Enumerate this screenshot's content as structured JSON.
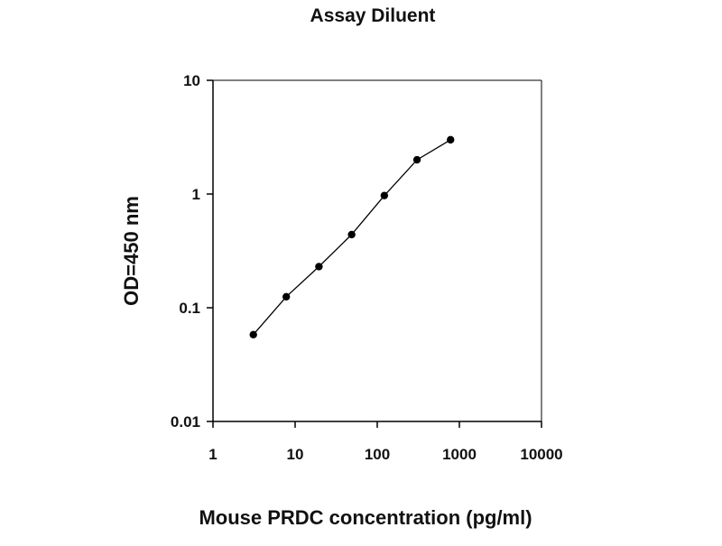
{
  "chart_data": {
    "type": "line",
    "title": "Assay Diluent",
    "xlabel": "Mouse PRDC concentration (pg/ml)",
    "ylabel": "OD=450 nm",
    "x_scale": "log",
    "y_scale": "log",
    "xlim": [
      1,
      10000
    ],
    "ylim": [
      0.01,
      10
    ],
    "x_ticks": [
      1,
      10,
      100,
      1000,
      10000
    ],
    "x_tick_labels": [
      "1",
      "10",
      "100",
      "1000",
      "10000"
    ],
    "y_ticks": [
      0.01,
      0.1,
      1,
      10
    ],
    "y_tick_labels": [
      "0.01",
      "0.1",
      "1",
      "10"
    ],
    "grid": false,
    "legend": "none",
    "series": [
      {
        "x": [
          3.1,
          7.8,
          19.5,
          48.8,
          122,
          305,
          781
        ],
        "y": [
          0.058,
          0.125,
          0.23,
          0.44,
          0.97,
          2.0,
          3.0
        ]
      }
    ],
    "colors": {
      "line": "#000000",
      "marker": "#000000",
      "axis": "#000000",
      "background": "#ffffff"
    }
  }
}
